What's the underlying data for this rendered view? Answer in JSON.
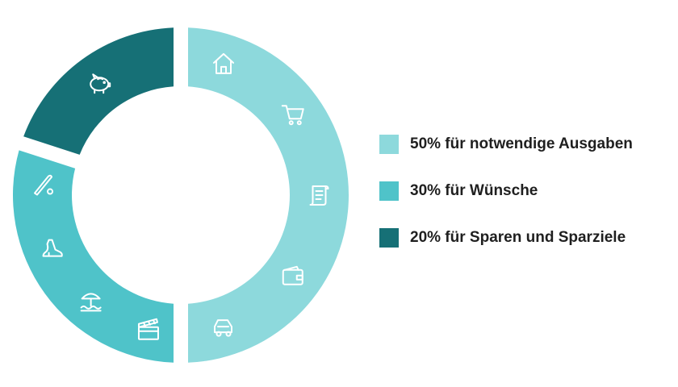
{
  "chart_data": {
    "type": "pie",
    "variant": "donut",
    "series": [
      {
        "name": "50% für notwendige Ausgaben",
        "value": 50,
        "color": "#8dd9dc",
        "icons": [
          "house-icon",
          "shopping-cart-icon",
          "document-icon",
          "wallet-icon",
          "car-icon"
        ]
      },
      {
        "name": "30% für Wünsche",
        "value": 30,
        "color": "#4fc3c9",
        "icons": [
          "clapperboard-icon",
          "beach-umbrella-icon",
          "high-heel-icon",
          "baseball-icon"
        ]
      },
      {
        "name": "20% für Sparen und Sparziele",
        "value": 20,
        "color": "#167076",
        "icons": [
          "piggy-bank-icon"
        ]
      }
    ],
    "legend_position": "right"
  }
}
